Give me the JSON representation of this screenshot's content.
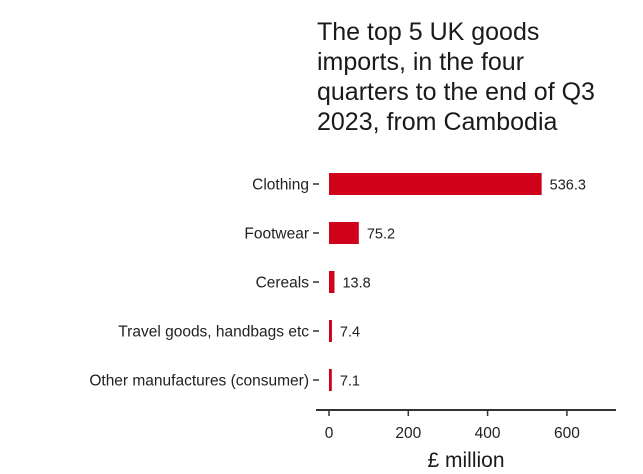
{
  "chart_data": {
    "type": "bar",
    "orientation": "horizontal",
    "title": "The top 5 UK goods imports, in the four quarters to the end of Q3 2023, from Cambodia",
    "title_lines": [
      "The top 5 UK goods",
      "imports, in the four",
      "quarters to the end of Q3",
      "2023, from Cambodia"
    ],
    "categories": [
      "Clothing",
      "Footwear",
      "Cereals",
      "Travel goods, handbags etc",
      "Other manufactures (consumer)"
    ],
    "values": [
      536.3,
      75.2,
      13.8,
      7.4,
      7.1
    ],
    "value_labels": [
      "536.3",
      "75.2",
      "13.8",
      "7.4",
      "7.1"
    ],
    "xlabel": "£ million",
    "ylabel": "",
    "xlim": [
      0,
      700
    ],
    "x_ticks": [
      0,
      200,
      400,
      600
    ],
    "x_tick_labels": [
      "0",
      "200",
      "400",
      "600"
    ],
    "grid": false,
    "legend": "none",
    "bar_color": "#d0021b"
  }
}
